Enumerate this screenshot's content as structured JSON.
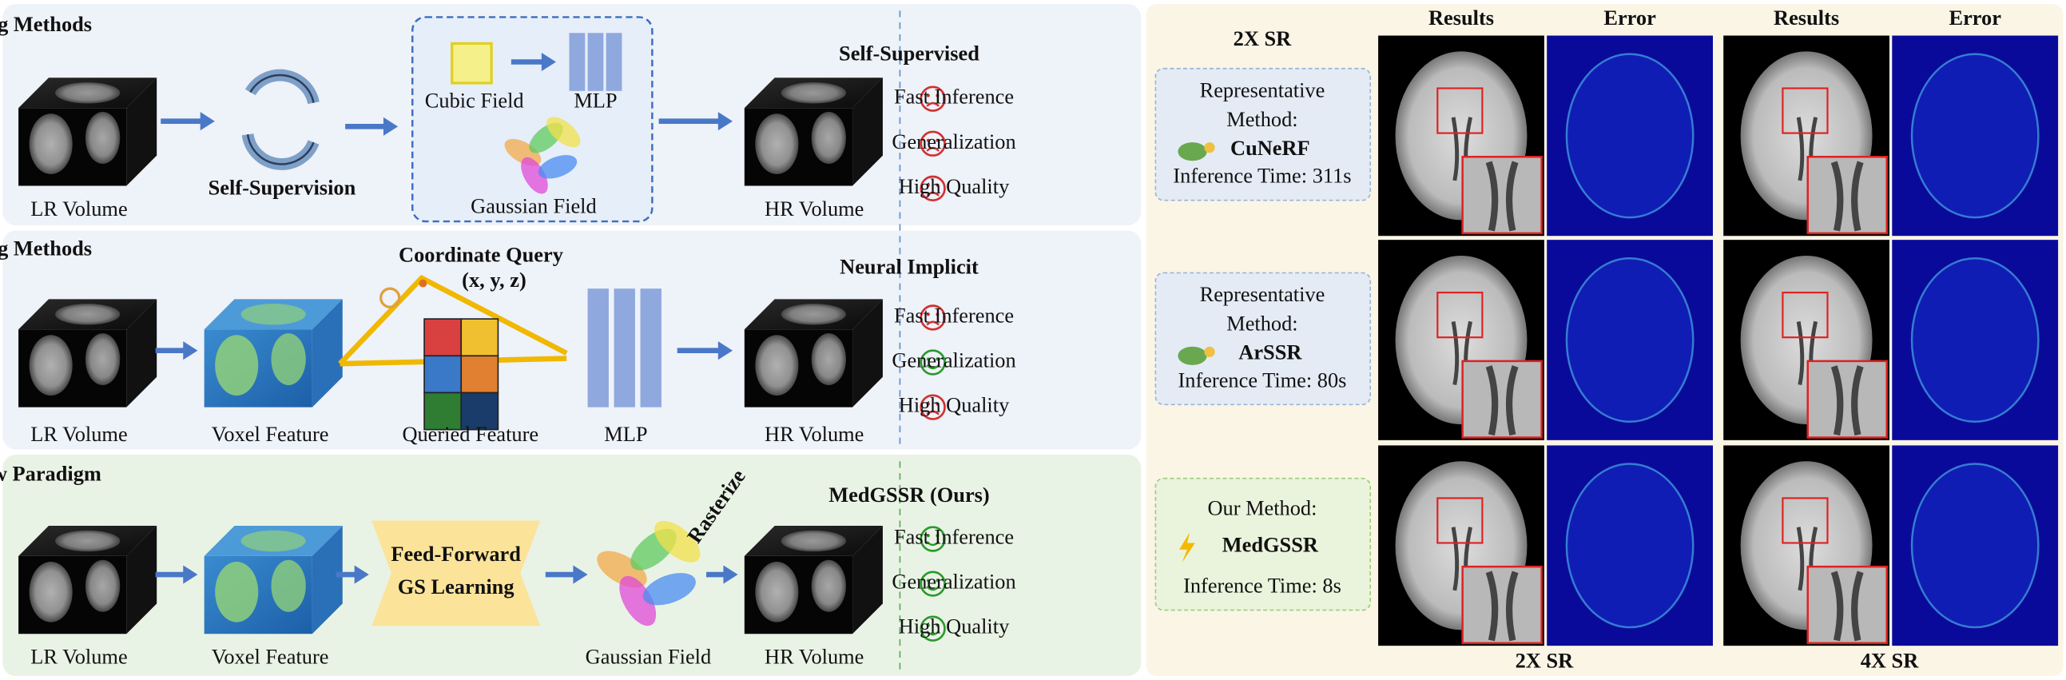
{
  "panels": [
    {
      "title": "Existing Methods",
      "steps": [
        "LR Volume",
        "Self-Supervision",
        "Cubic Field",
        "MLP",
        "Gaussian Field",
        "HR Volume"
      ],
      "side": {
        "heading": "Self-Supervised",
        "items": [
          {
            "label": "Fast Inference",
            "mood": "sad"
          },
          {
            "label": "Generalization",
            "mood": "sad"
          },
          {
            "label": "High Quality",
            "mood": "sad"
          }
        ]
      }
    },
    {
      "title": "Existing Methods",
      "steps": [
        "LR Volume",
        "Voxel Feature",
        "Coordinate Query",
        "(x, y, z)",
        "Queried Feature",
        "MLP",
        "HR Volume"
      ],
      "side": {
        "heading": "Neural Implicit",
        "items": [
          {
            "label": "Fast Inference",
            "mood": "sad"
          },
          {
            "label": "Generalization",
            "mood": "happy"
          },
          {
            "label": "High Quality",
            "mood": "sad"
          }
        ]
      }
    },
    {
      "title": "Our New Paradigm",
      "steps": [
        "LR Volume",
        "Voxel Feature",
        "Feed-Forward",
        "GS Learning",
        "Rasterize",
        "Gaussian Field",
        "HR Volume"
      ],
      "side": {
        "heading": "MedGSSR (Ours)",
        "items": [
          {
            "label": "Fast Inference",
            "mood": "happy"
          },
          {
            "label": "Generalization",
            "mood": "happy"
          },
          {
            "label": "High Quality",
            "mood": "happy"
          }
        ]
      }
    }
  ],
  "results": {
    "scale_header": "2X SR",
    "column_headers": [
      "Results",
      "Error",
      "Results",
      "Error"
    ],
    "methods": [
      {
        "intro_lines": [
          "Representative",
          "Method:"
        ],
        "name": "CuNeRF",
        "time": "Inference Time: 311s"
      },
      {
        "intro_lines": [
          "Representative",
          "Method:"
        ],
        "name": "ArSSR",
        "time": "Inference Time: 80s"
      },
      {
        "intro_lines": [
          "Our Method:"
        ],
        "name": "MedGSSR",
        "time": "Inference Time: 8s"
      }
    ],
    "footers": [
      "2X SR",
      "4X SR"
    ]
  }
}
